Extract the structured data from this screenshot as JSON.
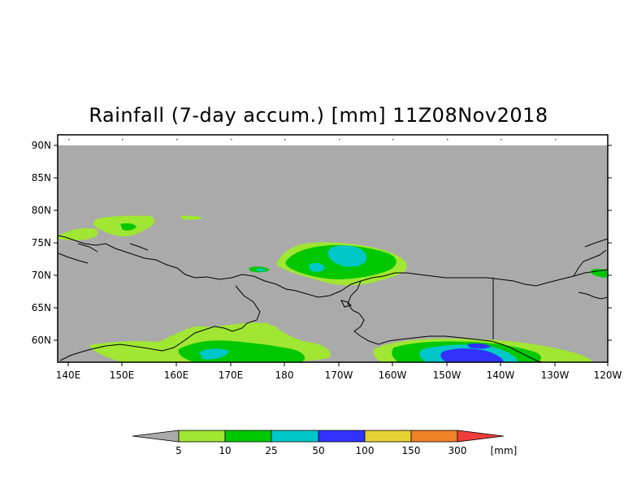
{
  "title": "Rainfall (7-day accum.) [mm] 11Z08Nov2018",
  "map": {
    "lat_labels": [
      "90N",
      "85N",
      "80N",
      "75N",
      "70N",
      "65N",
      "60N"
    ],
    "lon_labels": [
      "140E",
      "150E",
      "160E",
      "170E",
      "180",
      "170W",
      "160W",
      "150W",
      "140W",
      "130W",
      "120W"
    ],
    "background_color": "#aaaaaa"
  },
  "colorbar": {
    "unit": "[mm]",
    "labels": [
      "5",
      "10",
      "25",
      "50",
      "100",
      "150",
      "300"
    ],
    "colors": [
      "#a0e632",
      "#00c800",
      "#00c8c8",
      "#3232ff",
      "#e6d232",
      "#f08228",
      "#f03c3c"
    ],
    "below_color": "#aaaaaa"
  }
}
